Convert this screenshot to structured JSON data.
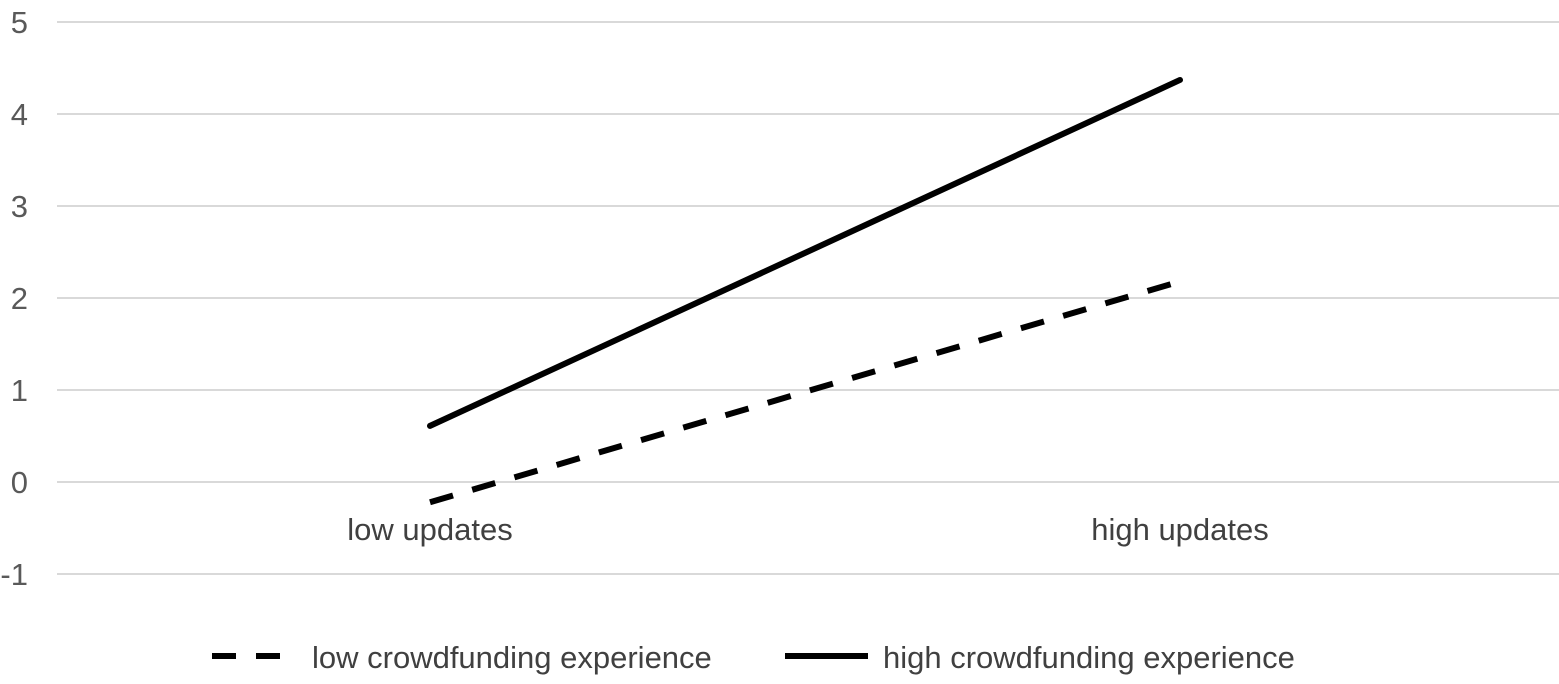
{
  "chart_data": {
    "type": "line",
    "title": "",
    "xlabel": "",
    "ylabel": "",
    "categories": [
      "low updates",
      "high updates"
    ],
    "yticks": [
      "5",
      "4",
      "3",
      "2",
      "1",
      "0",
      "-1"
    ],
    "ylim": [
      -1,
      5
    ],
    "grid": true,
    "legend_position": "bottom",
    "series": [
      {
        "name": "low crowdfunding experience",
        "values": [
          -0.22,
          2.18
        ],
        "line_style": "dashed",
        "color": "#000000"
      },
      {
        "name": "high crowdfunding experience",
        "values": [
          0.61,
          4.37
        ],
        "line_style": "solid",
        "color": "#000000"
      }
    ]
  }
}
